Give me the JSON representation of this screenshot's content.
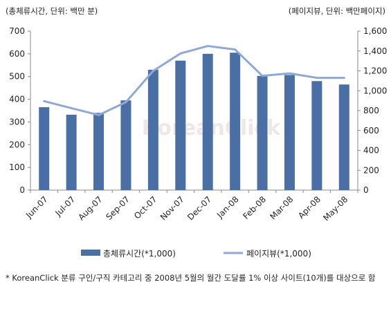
{
  "chart_data": {
    "type": "bar+line",
    "categories": [
      "Jun-07",
      "Jul-07",
      "Aug-07",
      "Sep-07",
      "Oct-07",
      "Nov-07",
      "Dec-07",
      "Jan-08",
      "Feb-08",
      "Mar-08",
      "Apr-08",
      "May-08"
    ],
    "series": [
      {
        "name": "총체류시간(*1,000)",
        "type": "bar",
        "axis": "left",
        "color": "#4a6fa5",
        "values": [
          365,
          332,
          340,
          395,
          530,
          570,
          600,
          605,
          503,
          507,
          480,
          465
        ]
      },
      {
        "name": "페이지뷰(*1,000)",
        "type": "line",
        "axis": "right",
        "color": "#8ea9d6",
        "values": [
          895,
          825,
          755,
          885,
          1200,
          1375,
          1450,
          1415,
          1150,
          1175,
          1130,
          1130
        ]
      }
    ],
    "left_axis": {
      "unit_label": "(총체류시간, 단위: 백만 분)",
      "ylim": [
        0,
        700
      ],
      "ticks": [
        "0",
        "100",
        "200",
        "300",
        "400",
        "500",
        "600",
        "700"
      ]
    },
    "right_axis": {
      "unit_label": "(페이지뷰, 단위: 백만페이지)",
      "ylim": [
        0,
        1600
      ],
      "ticks": [
        "0",
        "200",
        "400",
        "600",
        "800",
        "1,000",
        "1,200",
        "1,400",
        "1,600"
      ]
    },
    "grid": false,
    "legend": "bottom",
    "watermark": "KoreanClick"
  },
  "footnote": "* KoreanClick 분류 구인/구직 카테고리 중 2008년 5월의 월간 도달률 1% 이상 사이트(10개)를 대상으로 함"
}
